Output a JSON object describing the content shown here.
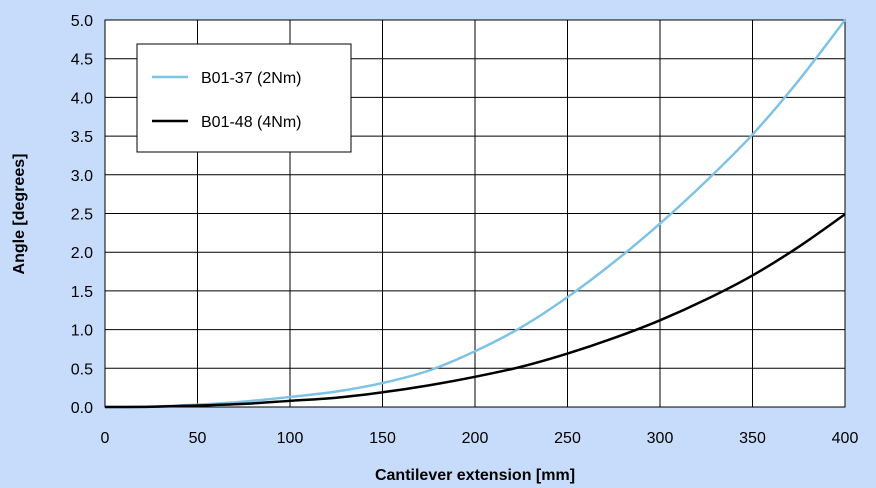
{
  "chart_data": {
    "type": "line",
    "title": "",
    "xlabel": "Cantilever extension [mm]",
    "ylabel": "Angle [degrees]",
    "xlim": [
      0,
      400
    ],
    "ylim": [
      0,
      5.0
    ],
    "x_ticks": [
      0,
      50,
      100,
      150,
      200,
      250,
      300,
      350,
      400
    ],
    "y_ticks": [
      0.0,
      0.5,
      1.0,
      1.5,
      2.0,
      2.5,
      3.0,
      3.5,
      4.0,
      4.5,
      5.0
    ],
    "x_tick_labels": [
      "0",
      "50",
      "100",
      "150",
      "200",
      "250",
      "300",
      "350",
      "400"
    ],
    "y_tick_labels": [
      "0.0",
      "0.5",
      "1.0",
      "1.5",
      "2.0",
      "2.5",
      "3.0",
      "3.5",
      "4.0",
      "4.5",
      "5.0"
    ],
    "grid": true,
    "legend_position": "top-left",
    "x": [
      0,
      25,
      50,
      75,
      100,
      125,
      150,
      175,
      200,
      225,
      250,
      275,
      300,
      325,
      350,
      375,
      400
    ],
    "series": [
      {
        "name": "B01-37 (2Nm)",
        "color": "#7ec2e6",
        "values": [
          0,
          0.005,
          0.03,
          0.07,
          0.13,
          0.2,
          0.31,
          0.47,
          0.72,
          1.03,
          1.42,
          1.87,
          2.37,
          2.92,
          3.52,
          4.22,
          5.0
        ]
      },
      {
        "name": "B01-48 (4Nm)",
        "color": "#000000",
        "values": [
          0,
          0.003,
          0.02,
          0.04,
          0.08,
          0.12,
          0.19,
          0.28,
          0.39,
          0.52,
          0.69,
          0.89,
          1.12,
          1.39,
          1.7,
          2.07,
          2.49
        ]
      }
    ]
  }
}
